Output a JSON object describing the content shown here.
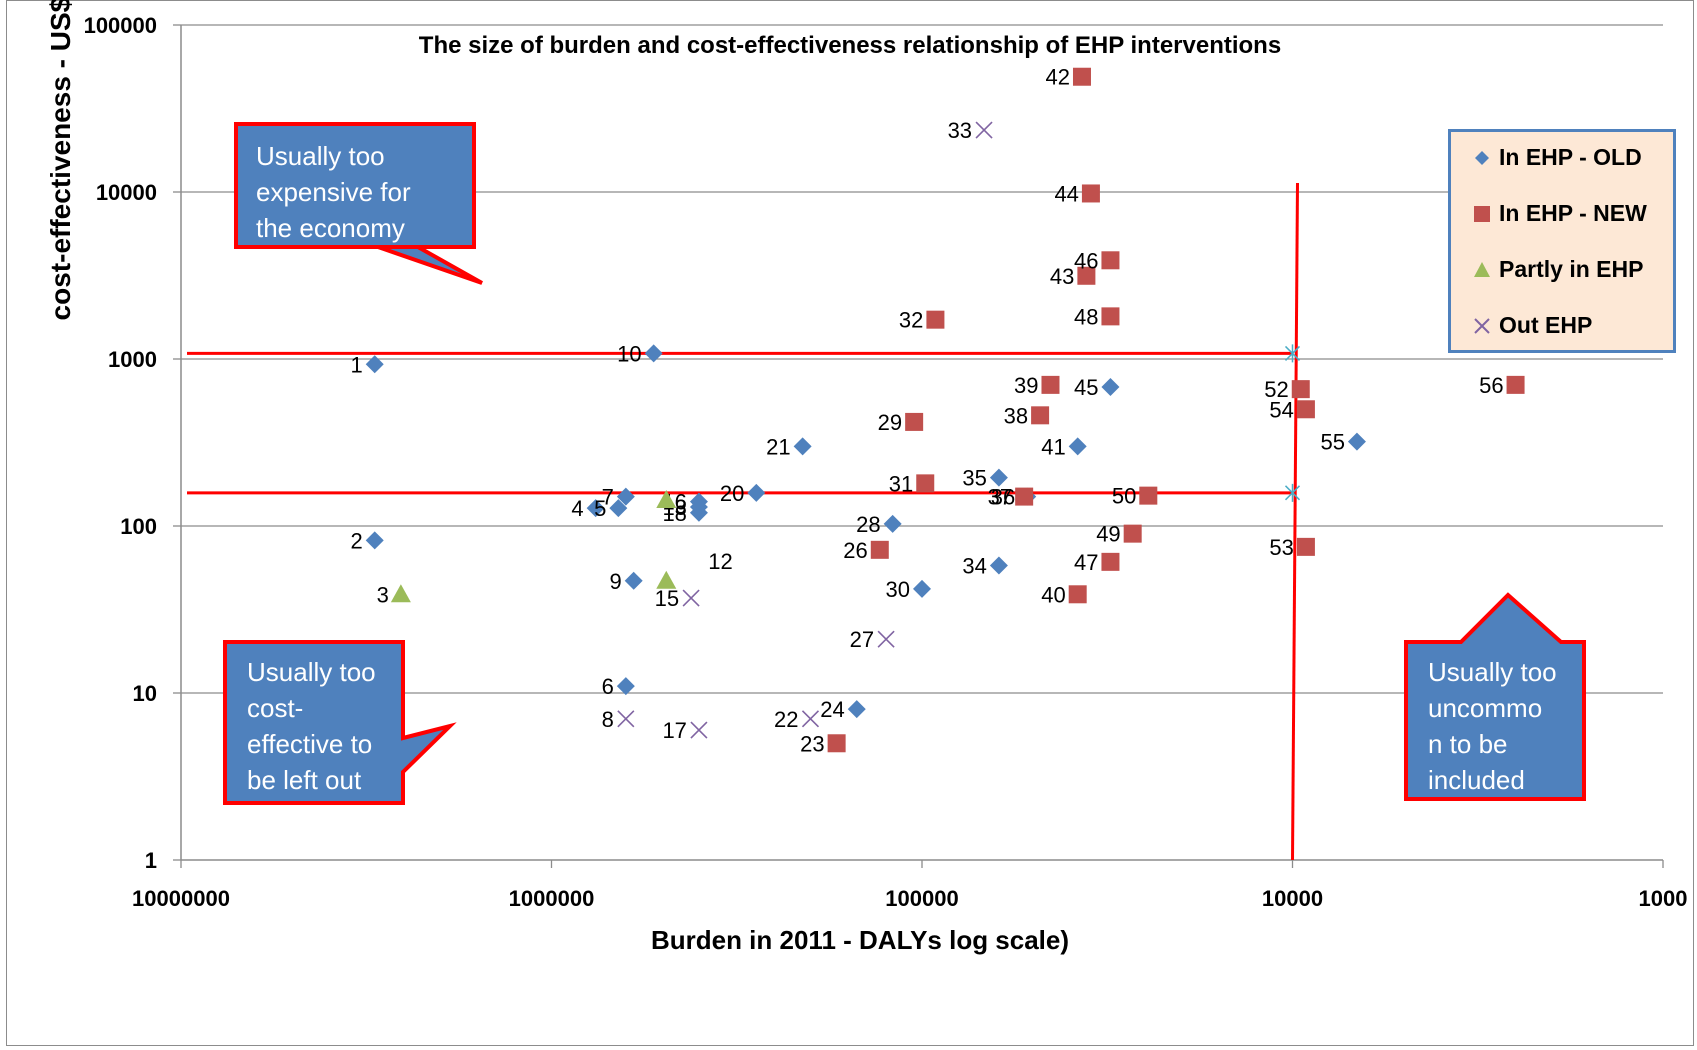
{
  "chart_data": {
    "type": "scatter",
    "title": "The size of burden and cost-effectiveness relationship of EHP interventions",
    "xlabel": "Burden in 2011 - DALYs log scale)",
    "ylabel": "cost-effectiveness - US$/DALY (log scale)",
    "x_scale": "log",
    "x_reversed": true,
    "y_scale": "log",
    "xlim": [
      10000000,
      1000
    ],
    "ylim": [
      1,
      100000
    ],
    "x_ticks": [
      "10000000",
      "1000000",
      "100000",
      "10000",
      "1000"
    ],
    "y_ticks": [
      "100000",
      "10000",
      "1000",
      "100",
      "10",
      "1"
    ],
    "grid": "horizontal",
    "legend_position": "top-right",
    "series": [
      {
        "name": "In EHP - OLD",
        "marker": "diamond",
        "color": "#4f81bd",
        "points": [
          {
            "label": "1",
            "x": 3000000,
            "y": 930
          },
          {
            "label": "2",
            "x": 3000000,
            "y": 82
          },
          {
            "label": "4",
            "x": 760000,
            "y": 128
          },
          {
            "label": "5",
            "x": 660000,
            "y": 128
          },
          {
            "label": "7",
            "x": 630000,
            "y": 150
          },
          {
            "label": "9",
            "x": 600000,
            "y": 47
          },
          {
            "label": "6",
            "x": 630000,
            "y": 11
          },
          {
            "label": "10",
            "x": 530000,
            "y": 1080
          },
          {
            "label": "16",
            "x": 400000,
            "y": 140
          },
          {
            "label": "13",
            "x": 400000,
            "y": 130
          },
          {
            "label": "18",
            "x": 400000,
            "y": 120
          },
          {
            "label": "20",
            "x": 280000,
            "y": 158
          },
          {
            "label": "21",
            "x": 210000,
            "y": 300
          },
          {
            "label": "24",
            "x": 150000,
            "y": 8
          },
          {
            "label": "28",
            "x": 120000,
            "y": 103
          },
          {
            "label": "30",
            "x": 100000,
            "y": 42
          },
          {
            "label": "34",
            "x": 62000,
            "y": 58
          },
          {
            "label": "35",
            "x": 62000,
            "y": 195
          },
          {
            "label": "36",
            "x": 52000,
            "y": 150
          },
          {
            "label": "41",
            "x": 38000,
            "y": 300
          },
          {
            "label": "45",
            "x": 31000,
            "y": 680
          },
          {
            "label": "55",
            "x": 6700,
            "y": 320
          }
        ]
      },
      {
        "name": "In EHP - NEW",
        "marker": "square",
        "color": "#c0504d",
        "points": [
          {
            "label": "23",
            "x": 170000,
            "y": 5
          },
          {
            "label": "26",
            "x": 130000,
            "y": 72
          },
          {
            "label": "29",
            "x": 105000,
            "y": 420
          },
          {
            "label": "31",
            "x": 98000,
            "y": 180
          },
          {
            "label": "32",
            "x": 92000,
            "y": 1720
          },
          {
            "label": "37",
            "x": 53000,
            "y": 150
          },
          {
            "label": "38",
            "x": 48000,
            "y": 460
          },
          {
            "label": "39",
            "x": 45000,
            "y": 700
          },
          {
            "label": "40",
            "x": 38000,
            "y": 39
          },
          {
            "label": "42",
            "x": 37000,
            "y": 49000
          },
          {
            "label": "43",
            "x": 36000,
            "y": 3150
          },
          {
            "label": "44",
            "x": 35000,
            "y": 9800
          },
          {
            "label": "46",
            "x": 31000,
            "y": 3900
          },
          {
            "label": "47",
            "x": 31000,
            "y": 61
          },
          {
            "label": "48",
            "x": 31000,
            "y": 1800
          },
          {
            "label": "49",
            "x": 27000,
            "y": 90
          },
          {
            "label": "50",
            "x": 24500,
            "y": 152
          },
          {
            "label": "52",
            "x": 9500,
            "y": 660
          },
          {
            "label": "53",
            "x": 9200,
            "y": 75
          },
          {
            "label": "54",
            "x": 9200,
            "y": 500
          },
          {
            "label": "56",
            "x": 2500,
            "y": 700
          }
        ]
      },
      {
        "name": "Partly in EHP",
        "marker": "triangle",
        "color": "#9bbb59",
        "points": [
          {
            "label": "3",
            "x": 2550000,
            "y": 39
          },
          {
            "label": "12",
            "x": 490000,
            "y": 47
          },
          {
            "label": "",
            "x": 490000,
            "y": 143
          }
        ]
      },
      {
        "name": "Out EHP",
        "marker": "x",
        "color": "#8064a2",
        "points": [
          {
            "label": "8",
            "x": 630000,
            "y": 7
          },
          {
            "label": "15",
            "x": 420000,
            "y": 37
          },
          {
            "label": "17",
            "x": 400000,
            "y": 6
          },
          {
            "label": "22",
            "x": 200000,
            "y": 7
          },
          {
            "label": "27",
            "x": 125000,
            "y": 21
          },
          {
            "label": "33",
            "x": 68000,
            "y": 23500
          }
        ]
      }
    ],
    "reference_lines": {
      "horizontal_y": [
        1080,
        158
      ],
      "vertical_x": [
        10000
      ]
    },
    "annotations": [
      {
        "name": "top-left",
        "text": "Usually too expensive for the economy",
        "lines": [
          "Usually too",
          "expensive for",
          "the economy"
        ]
      },
      {
        "name": "bottom-left",
        "text": "Usually too cost-effective to be left out",
        "lines": [
          "Usually too",
          "cost-",
          "effective to",
          "be left out"
        ]
      },
      {
        "name": "bottom-right",
        "text": "Usually too uncommon to be included",
        "lines": [
          "Usually too",
          "uncommo",
          "n to be",
          "included"
        ]
      }
    ]
  },
  "colors": {
    "old": "#4f81bd",
    "new": "#c0504d",
    "partly": "#9bbb59",
    "out": "#8064a2",
    "refline": "#ff0000",
    "callout_fill": "#4f81bd",
    "callout_border": "#ff0000",
    "legend_bg": "#fde8d6"
  }
}
